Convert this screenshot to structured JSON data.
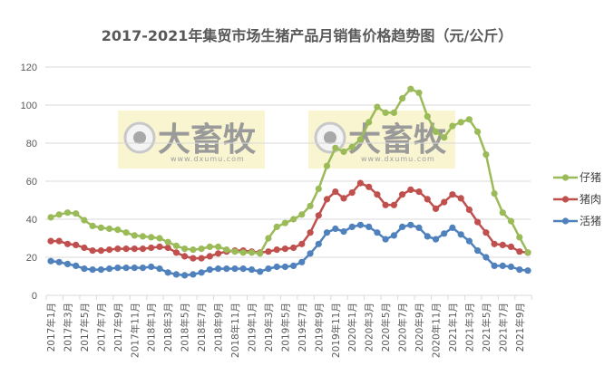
{
  "chart_data": {
    "type": "line",
    "title": "2017-2021年集贸市场生猪产品月销售价格趋势图（元/公斤）",
    "xlabel": "",
    "ylabel": "",
    "ylim": [
      0,
      120
    ],
    "yticks": [
      0,
      20,
      40,
      60,
      80,
      100,
      120
    ],
    "grid": true,
    "legend_position": "right",
    "x": [
      "2017年1月",
      "2017年2月",
      "2017年3月",
      "2017年4月",
      "2017年5月",
      "2017年6月",
      "2017年7月",
      "2017年8月",
      "2017年9月",
      "2017年10月",
      "2017年11月",
      "2017年12月",
      "2018年1月",
      "2018年2月",
      "2018年3月",
      "2018年4月",
      "2018年5月",
      "2018年6月",
      "2018年7月",
      "2018年8月",
      "2018年9月",
      "2018年10月",
      "2018年11月",
      "2018年12月",
      "2019年1月",
      "2019年2月",
      "2019年3月",
      "2019年4月",
      "2019年5月",
      "2019年6月",
      "2019年7月",
      "2019年8月",
      "2019年9月",
      "2019年10月",
      "2019年11月",
      "2019年12月",
      "2020年1月",
      "2020年2月",
      "2020年3月",
      "2020年4月",
      "2020年5月",
      "2020年6月",
      "2020年7月",
      "2020年8月",
      "2020年9月",
      "2020年10月",
      "2020年11月",
      "2020年12月",
      "2021年1月",
      "2021年2月",
      "2021年3月",
      "2021年4月",
      "2021年5月",
      "2021年6月",
      "2021年7月",
      "2021年8月",
      "2021年9月",
      "2021年10月"
    ],
    "tick_labels": [
      "2017年1月",
      "2017年3月",
      "2017年5月",
      "2017年7月",
      "2017年9月",
      "2017年11月",
      "2018年1月",
      "2018年3月",
      "2018年5月",
      "2018年7月",
      "2018年9月",
      "2018年11月",
      "2019年1月",
      "2019年3月",
      "2019年5月",
      "2019年7月",
      "2019年9月",
      "2019年11月",
      "2020年1月",
      "2020年3月",
      "2020年5月",
      "2020年7月",
      "2020年9月",
      "2020年11月",
      "2021年1月",
      "2021年3月",
      "2021年5月",
      "2021年7月",
      "2021年9月"
    ],
    "series": [
      {
        "name": "仔猪",
        "color": "#9BBB59",
        "values": [
          41,
          42.5,
          43.5,
          43,
          39.5,
          36.5,
          35.5,
          35,
          34.5,
          33,
          31.5,
          31,
          30.5,
          30,
          28,
          26,
          24.5,
          24,
          24.5,
          25.5,
          25.5,
          24,
          23,
          22.5,
          22.5,
          22,
          30,
          36,
          38,
          40,
          42.5,
          47,
          56,
          68,
          77.5,
          75.5,
          78,
          82,
          91,
          99,
          96,
          96,
          103.5,
          108.5,
          106.5,
          94,
          86,
          83,
          89,
          91,
          92.5,
          86,
          74,
          53.5,
          43.5,
          39,
          30.5,
          22.5
        ]
      },
      {
        "name": "猪肉",
        "color": "#C0504D",
        "values": [
          28.5,
          28.5,
          27,
          26.5,
          25,
          23.5,
          23.5,
          24,
          24.5,
          24.5,
          24.5,
          24.5,
          25,
          25.5,
          25,
          22.5,
          20.5,
          19.5,
          19.5,
          20.5,
          22,
          23,
          23.5,
          23.5,
          23,
          22.5,
          23,
          24,
          24.5,
          25,
          27,
          33,
          42,
          50.5,
          54.5,
          51,
          54,
          59,
          57,
          53,
          47.5,
          47.5,
          53,
          55.5,
          54.5,
          50.5,
          45.5,
          49,
          53,
          51,
          45,
          38.5,
          33,
          27,
          26.5,
          25.5,
          23,
          22.5
        ]
      },
      {
        "name": "活猪",
        "color": "#4F81BD",
        "values": [
          18,
          17.5,
          16.5,
          15.5,
          14,
          13.5,
          13.5,
          14,
          14.5,
          14.5,
          14.5,
          14.5,
          15,
          14,
          12,
          11,
          10.5,
          11,
          12,
          13.5,
          14,
          14,
          14,
          14,
          13.5,
          12.5,
          14,
          15,
          15,
          15.5,
          17.5,
          22,
          27,
          33,
          35,
          33.5,
          36,
          37,
          36,
          33,
          29.5,
          31.5,
          36,
          37,
          35.5,
          31,
          29.5,
          32.5,
          35.5,
          32,
          28.5,
          23.5,
          20,
          15.5,
          15.5,
          15,
          13.5,
          13
        ]
      }
    ]
  },
  "watermarks": [
    {
      "brand": "大畜牧",
      "url": "www.dxumu.com"
    },
    {
      "brand": "大畜牧",
      "url": "www.dxumu.com"
    }
  ]
}
